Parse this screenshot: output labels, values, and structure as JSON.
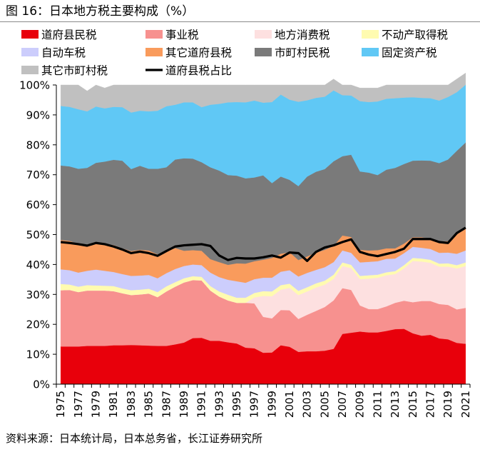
{
  "figure": {
    "title": "图 16：日本地方税主要构成（%）",
    "source": "资料来源：日本统计局，日本总务省，长江证券研究所"
  },
  "chart_data": {
    "type": "area",
    "stacked": true,
    "x": [
      1975,
      1976,
      1977,
      1978,
      1979,
      1980,
      1981,
      1982,
      1983,
      1984,
      1985,
      1986,
      1987,
      1988,
      1989,
      1990,
      1991,
      1992,
      1993,
      1994,
      1995,
      1996,
      1997,
      1998,
      1999,
      2000,
      2001,
      2002,
      2003,
      2004,
      2005,
      2006,
      2007,
      2008,
      2009,
      2010,
      2011,
      2012,
      2013,
      2014,
      2015,
      2016,
      2017,
      2018,
      2019,
      2020,
      2021
    ],
    "x_tick_labels": [
      "1975",
      "1977",
      "1979",
      "1981",
      "1983",
      "1985",
      "1987",
      "1989",
      "1991",
      "1993",
      "1995",
      "1997",
      "1999",
      "2001",
      "2003",
      "2005",
      "2007",
      "2009",
      "2011",
      "2013",
      "2015",
      "2017",
      "2019",
      "2021"
    ],
    "ylim": [
      0,
      100
    ],
    "y_ticks": [
      0,
      10,
      20,
      30,
      40,
      50,
      60,
      70,
      80,
      90,
      100
    ],
    "y_tick_labels": [
      "0%",
      "10%",
      "20%",
      "30%",
      "40%",
      "50%",
      "60%",
      "70%",
      "80%",
      "90%",
      "100%"
    ],
    "series": [
      {
        "name": "道府县民税",
        "color": "#e8000b",
        "values": [
          12.6,
          12.6,
          12.6,
          12.8,
          12.8,
          12.8,
          13.0,
          13.0,
          13.1,
          13.0,
          12.9,
          12.8,
          12.8,
          13.3,
          13.9,
          15.4,
          15.5,
          14.5,
          14.5,
          14.0,
          13.6,
          12.2,
          12.0,
          10.5,
          10.6,
          13.0,
          12.5,
          10.8,
          11.0,
          11.0,
          11.2,
          11.8,
          16.8,
          17.2,
          17.6,
          17.3,
          17.3,
          17.8,
          18.4,
          18.5,
          17.0,
          16.2,
          16.5,
          15.3,
          15.0,
          13.8,
          13.5
        ]
      },
      {
        "name": "事业税",
        "color": "#f7918f",
        "values": [
          18.8,
          18.9,
          18.2,
          18.5,
          18.5,
          18.5,
          18.1,
          17.4,
          16.7,
          17.0,
          17.4,
          16.3,
          18.2,
          19.3,
          20.1,
          19.4,
          19.2,
          16.8,
          14.8,
          14.0,
          13.6,
          15.0,
          15.0,
          12.0,
          11.4,
          11.8,
          12.2,
          11.0,
          12.2,
          13.5,
          14.6,
          16.2,
          15.3,
          14.3,
          8.7,
          7.8,
          7.8,
          8.2,
          8.8,
          9.4,
          10.4,
          11.6,
          11.3,
          11.5,
          11.5,
          11.2,
          12.0
        ]
      },
      {
        "name": "地方消费税",
        "color": "#fde0e0",
        "values": [
          0,
          0,
          0,
          0,
          0,
          0,
          0,
          0,
          0,
          0,
          0,
          0,
          0,
          0,
          0,
          0,
          0,
          0,
          0,
          0,
          0,
          0,
          2.0,
          7.0,
          7.4,
          6.8,
          7.5,
          8.0,
          7.8,
          7.8,
          7.5,
          7.2,
          7.4,
          7.3,
          8.8,
          10.2,
          10.5,
          10.4,
          9.6,
          10.8,
          13.8,
          13.2,
          12.8,
          12.5,
          12.8,
          13.7,
          14.0
        ]
      },
      {
        "name": "不动产取得税",
        "color": "#fffbb0",
        "values": [
          2.1,
          1.8,
          1.8,
          1.8,
          1.7,
          1.6,
          1.7,
          1.6,
          1.6,
          1.6,
          1.6,
          1.7,
          1.7,
          1.5,
          1.4,
          1.3,
          1.2,
          1.5,
          1.7,
          1.9,
          1.7,
          1.7,
          1.5,
          1.6,
          1.6,
          1.5,
          1.4,
          1.4,
          1.4,
          1.4,
          1.3,
          1.4,
          1.2,
          1.1,
          1.1,
          1.1,
          1.0,
          1.0,
          1.0,
          1.1,
          1.0,
          1.0,
          1.0,
          1.0,
          1.1,
          1.1,
          1.2
        ]
      },
      {
        "name": "自动车税",
        "color": "#cccdfc",
        "values": [
          4.9,
          4.8,
          4.7,
          4.8,
          5.3,
          5.0,
          4.7,
          4.8,
          4.8,
          4.7,
          4.6,
          4.6,
          4.4,
          4.4,
          4.1,
          3.9,
          3.9,
          4.5,
          4.8,
          5.0,
          5.5,
          5.0,
          4.6,
          4.5,
          4.6,
          4.5,
          4.5,
          4.8,
          4.8,
          4.5,
          4.5,
          4.2,
          4.0,
          4.0,
          4.5,
          4.5,
          4.5,
          4.5,
          4.2,
          4.0,
          3.7,
          3.6,
          3.6,
          3.6,
          3.6,
          3.8,
          4.0
        ]
      },
      {
        "name": "其它道府县税",
        "color": "#f99b5c",
        "values": [
          9.8,
          9.8,
          9.6,
          8.5,
          9.0,
          9.0,
          9.0,
          8.6,
          8.3,
          8.6,
          8.2,
          8.0,
          7.2,
          7.0,
          5.1,
          4.8,
          4.8,
          4.5,
          5.0,
          5.0,
          6.0,
          6.4,
          6.0,
          6.0,
          6.6,
          6.0,
          6.0,
          5.5,
          5.5,
          5.8,
          5.8,
          5.4,
          5.0,
          5.3,
          4.2,
          3.8,
          3.7,
          3.5,
          3.4,
          3.2,
          3.2,
          3.5,
          3.5,
          3.8,
          3.8,
          6.5,
          7.6
        ]
      },
      {
        "name": "市町村民税",
        "color": "#7a7a7a",
        "values": [
          24.9,
          24.9,
          25.1,
          25.9,
          26.7,
          27.5,
          28.5,
          29.3,
          27.4,
          28.1,
          27.3,
          28.6,
          28.2,
          29.6,
          30.9,
          30.6,
          29.6,
          30.7,
          30.6,
          30.0,
          29.3,
          28.5,
          28.0,
          28.2,
          25.0,
          25.8,
          24.2,
          24.7,
          26.7,
          27.0,
          27.0,
          28.3,
          26.5,
          27.5,
          26.2,
          26.0,
          25.1,
          26.3,
          26.9,
          26.6,
          25.6,
          25.7,
          26.0,
          26.2,
          27.3,
          27.9,
          28.5
        ]
      },
      {
        "name": "固定资产税",
        "color": "#60c8f5",
        "values": [
          19.9,
          19.9,
          19.9,
          18.9,
          18.8,
          17.8,
          17.7,
          17.9,
          18.9,
          18.4,
          19.2,
          19.4,
          20.4,
          18.3,
          18.7,
          18.8,
          18.4,
          20.9,
          22.3,
          24.3,
          24.6,
          25.4,
          25.7,
          24.3,
          27.1,
          27.4,
          26.8,
          28.2,
          25.5,
          24.7,
          24.2,
          23.7,
          20.4,
          19.8,
          23.5,
          23.6,
          24.6,
          23.7,
          23.3,
          22.2,
          21.2,
          20.9,
          20.9,
          20.9,
          20.9,
          19.6,
          19.3
        ]
      },
      {
        "name": "其它市町村税",
        "color": "#c0c0c0",
        "values": [
          7.0,
          7.3,
          8.1,
          6.8,
          7.2,
          6.8,
          7.3,
          7.4,
          9.2,
          8.6,
          8.8,
          8.6,
          7.1,
          6.6,
          5.8,
          5.8,
          7.4,
          6.6,
          6.3,
          5.8,
          5.7,
          5.8,
          5.2,
          5.9,
          5.7,
          3.2,
          4.9,
          5.6,
          5.1,
          4.3,
          3.9,
          3.8,
          3.4,
          3.5,
          4.4,
          4.7,
          4.5,
          4.6,
          4.4,
          4.2,
          4.1,
          4.3,
          4.4,
          5.2,
          4.0,
          4.4,
          3.9
        ]
      }
    ],
    "line_series": {
      "name": "道府县税占比",
      "color": "#000000",
      "values": [
        47.5,
        47.2,
        46.8,
        46.3,
        47.2,
        46.8,
        46.0,
        45.0,
        43.8,
        44.3,
        43.8,
        42.9,
        44.5,
        46.0,
        46.4,
        46.6,
        46.8,
        46.2,
        43.0,
        41.5,
        42.2,
        42.0,
        42.0,
        42.4,
        43.0,
        42.3,
        44.0,
        43.8,
        41.2,
        44.2,
        45.7,
        46.4,
        47.5,
        48.4,
        44.2,
        43.3,
        42.8,
        43.5,
        44.2,
        45.3,
        48.5,
        48.5,
        48.5,
        47.5,
        47.2,
        50.5,
        52.3
      ]
    }
  }
}
